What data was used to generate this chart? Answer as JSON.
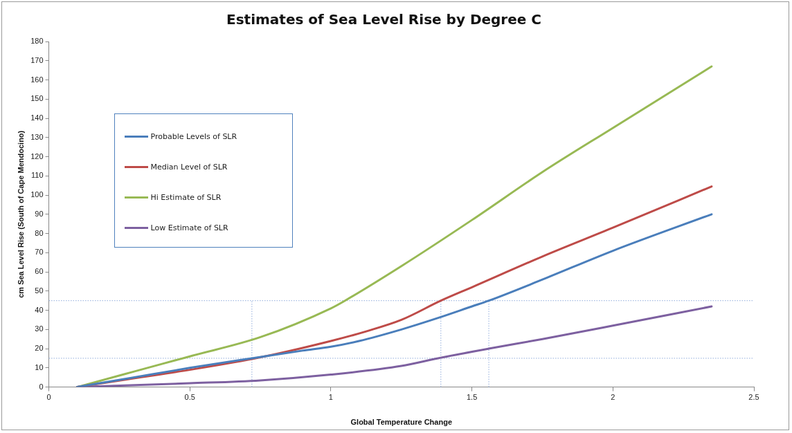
{
  "chart_data": {
    "type": "line",
    "title": "Estimates of Sea Level Rise by Degree C",
    "xlabel": "Global Temperature Change",
    "ylabel": "cm Sea Level Rise (South of Cape Mendocino)",
    "xlim": [
      0,
      2.5
    ],
    "xticks": [
      0,
      0.5,
      1,
      1.5,
      2,
      2.5
    ],
    "ylim": [
      0,
      180
    ],
    "yticks": [
      0,
      10,
      20,
      30,
      40,
      50,
      60,
      70,
      80,
      90,
      100,
      110,
      120,
      130,
      140,
      150,
      160,
      170,
      180
    ],
    "grid": false,
    "legend": "top left",
    "marker": "none",
    "line_style": "solid",
    "series": [
      {
        "name": "Probable Levels of SLR",
        "color": "#4a7ebb",
        "x": [
          0.1,
          0.3,
          0.5,
          0.72,
          0.9,
          1.0,
          1.1,
          1.25,
          1.38,
          1.5,
          1.56,
          1.75,
          2.0,
          2.35
        ],
        "values": [
          0,
          5,
          10,
          15,
          19,
          21,
          24,
          30,
          36,
          42,
          45,
          56,
          71,
          90
        ]
      },
      {
        "name": "Median Level of SLR",
        "color": "#be4b48",
        "x": [
          0.1,
          0.3,
          0.5,
          0.75,
          1.0,
          1.125,
          1.25,
          1.39,
          1.5,
          1.75,
          2.0,
          2.35
        ],
        "values": [
          0,
          4.5,
          9,
          15.5,
          24,
          29,
          35,
          45,
          52,
          68,
          83,
          104.5
        ]
      },
      {
        "name": "Hi Estimate of SLR",
        "color": "#98b954",
        "x": [
          0.1,
          0.3,
          0.5,
          0.75,
          1.0,
          1.05,
          1.25,
          1.5,
          1.75,
          2.0,
          2.35
        ],
        "values": [
          0,
          8,
          16,
          26,
          41,
          45,
          63,
          87,
          112,
          135,
          167
        ]
      },
      {
        "name": "Low Estimate of SLR",
        "color": "#7d60a0",
        "x": [
          0.1,
          0.5,
          0.75,
          1.0,
          1.25,
          1.38,
          1.56,
          1.75,
          2.0,
          2.35
        ],
        "values": [
          0,
          2,
          3.5,
          6.5,
          11,
          15,
          20,
          25,
          32,
          42
        ]
      }
    ],
    "ref_lines": [
      {
        "axis": "y",
        "value": 45,
        "color": "#8eaadb",
        "line_style": "dotted"
      },
      {
        "axis": "y",
        "value": 15,
        "color": "#8eaadb",
        "line_style": "dotted"
      },
      {
        "axis": "x",
        "value": 0.72,
        "color": "#8eaadb",
        "line_style": "dotted"
      },
      {
        "axis": "x",
        "value": 1.39,
        "color": "#8eaadb",
        "line_style": "dotted"
      },
      {
        "axis": "x",
        "value": 1.56,
        "color": "#8eaadb",
        "line_style": "dotted"
      }
    ]
  }
}
